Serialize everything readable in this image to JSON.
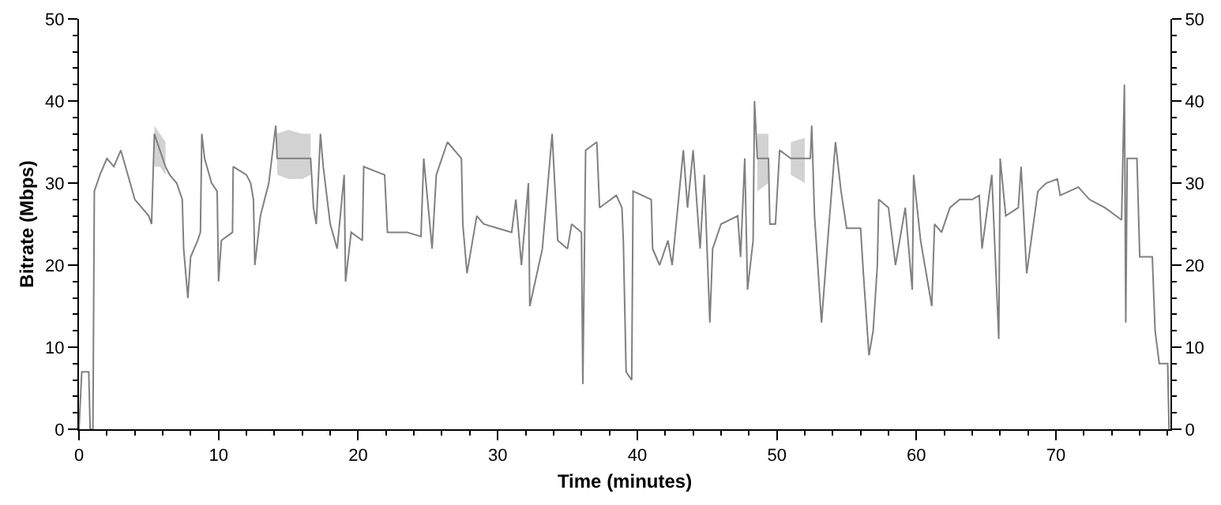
{
  "chart_data": {
    "type": "line",
    "xlabel": "Time (minutes)",
    "ylabel": "Bitrate (Mbps)",
    "xlim": [
      0,
      78.2
    ],
    "ylim": [
      0,
      50
    ],
    "y2lim": [
      0,
      50
    ],
    "xticks": [
      0,
      {
        "value": 2,
        "label": null
      },
      {
        "value": 4,
        "label": null
      },
      {
        "value": 6,
        "label": null
      },
      {
        "value": 8,
        "label": null
      },
      10,
      {
        "value": 12,
        "label": null
      },
      {
        "value": 14,
        "label": null
      },
      {
        "value": 16,
        "label": null
      },
      {
        "value": 18,
        "label": null
      },
      20,
      {
        "value": 22,
        "label": null
      },
      {
        "value": 24,
        "label": null
      },
      {
        "value": 26,
        "label": null
      },
      {
        "value": 28,
        "label": null
      },
      30,
      {
        "value": 32,
        "label": null
      },
      {
        "value": 34,
        "label": null
      },
      {
        "value": 36,
        "label": null
      },
      {
        "value": 38,
        "label": null
      },
      40,
      {
        "value": 42,
        "label": null
      },
      {
        "value": 44,
        "label": null
      },
      {
        "value": 46,
        "label": null
      },
      {
        "value": 48,
        "label": null
      },
      50,
      {
        "value": 52,
        "label": null
      },
      {
        "value": 54,
        "label": null
      },
      {
        "value": 56,
        "label": null
      },
      {
        "value": 58,
        "label": null
      },
      60,
      {
        "value": 62,
        "label": null
      },
      {
        "value": 64,
        "label": null
      },
      {
        "value": 66,
        "label": null
      },
      {
        "value": 68,
        "label": null
      },
      70,
      {
        "value": 72,
        "label": null
      },
      {
        "value": 74,
        "label": null
      },
      {
        "value": 76,
        "label": null
      },
      {
        "value": 78,
        "label": null
      }
    ],
    "yticks": [
      0,
      {
        "value": 2,
        "label": null
      },
      {
        "value": 4,
        "label": null
      },
      {
        "value": 6,
        "label": null
      },
      {
        "value": 8,
        "label": null
      },
      10,
      {
        "value": 12,
        "label": null
      },
      {
        "value": 14,
        "label": null
      },
      {
        "value": 16,
        "label": null
      },
      {
        "value": 18,
        "label": null
      },
      20,
      {
        "value": 22,
        "label": null
      },
      {
        "value": 24,
        "label": null
      },
      {
        "value": 26,
        "label": null
      },
      {
        "value": 28,
        "label": null
      },
      30,
      {
        "value": 32,
        "label": null
      },
      {
        "value": 34,
        "label": null
      },
      {
        "value": 36,
        "label": null
      },
      {
        "value": 38,
        "label": null
      },
      40,
      {
        "value": 42,
        "label": null
      },
      {
        "value": 44,
        "label": null
      },
      {
        "value": 46,
        "label": null
      },
      {
        "value": 48,
        "label": null
      },
      50
    ],
    "y2ticks": [
      0,
      {
        "value": 2,
        "label": null
      },
      {
        "value": 4,
        "label": null
      },
      {
        "value": 6,
        "label": null
      },
      {
        "value": 8,
        "label": null
      },
      10,
      {
        "value": 12,
        "label": null
      },
      {
        "value": 14,
        "label": null
      },
      {
        "value": 16,
        "label": null
      },
      {
        "value": 18,
        "label": null
      },
      20,
      {
        "value": 22,
        "label": null
      },
      {
        "value": 24,
        "label": null
      },
      {
        "value": 26,
        "label": null
      },
      {
        "value": 28,
        "label": null
      },
      30,
      {
        "value": 32,
        "label": null
      },
      {
        "value": 34,
        "label": null
      },
      {
        "value": 36,
        "label": null
      },
      {
        "value": 38,
        "label": null
      },
      40,
      {
        "value": 42,
        "label": null
      },
      {
        "value": 44,
        "label": null
      },
      {
        "value": 46,
        "label": null
      },
      {
        "value": 48,
        "label": null
      },
      50
    ],
    "marker": "none",
    "line_style": "solid",
    "series": [
      {
        "color": "#808080",
        "x": [
          0,
          0.2,
          0.7,
          0.8,
          1.0,
          1.1,
          1.5,
          2.0,
          2.5,
          3.0,
          3.5,
          4.0,
          4.5,
          5.0,
          5.2,
          5.4,
          5.8,
          6.2,
          6.5,
          7.0,
          7.4,
          7.5,
          7.8,
          8.0,
          8.5,
          8.7,
          8.8,
          9.0,
          9.5,
          9.9,
          10.0,
          10.2,
          11.0,
          11.05,
          12.0,
          12.3,
          12.5,
          12.6,
          13.0,
          13.6,
          14.1,
          14.2,
          15.0,
          16.0,
          16.6,
          16.8,
          17.0,
          17.3,
          17.5,
          18.0,
          18.5,
          19.0,
          19.1,
          19.5,
          20.3,
          20.4,
          21.9,
          22.1,
          23.5,
          24.5,
          24.7,
          25.3,
          25.6,
          26.4,
          27.4,
          27.5,
          27.8,
          28.5,
          29.0,
          30.0,
          31.0,
          31.3,
          31.7,
          32.2,
          32.3,
          33.2,
          33.9,
          34.3,
          35.0,
          35.3,
          36.0,
          36.1,
          36.3,
          37.1,
          37.3,
          38.5,
          38.9,
          39.0,
          39.2,
          39.6,
          39.7,
          41.0,
          41.1,
          41.6,
          42.2,
          42.5,
          43.3,
          43.6,
          44.0,
          44.5,
          44.8,
          45.2,
          45.4,
          46.0,
          47.2,
          47.4,
          47.7,
          47.9,
          48.3,
          48.4,
          48.6,
          49.4,
          49.5,
          49.9,
          50.2,
          51.0,
          52.0,
          52.4,
          52.5,
          52.7,
          53.2,
          53.6,
          54.2,
          54.6,
          55.0,
          56.0,
          56.2,
          56.6,
          56.9,
          57.2,
          57.3,
          58.0,
          58.5,
          59.2,
          59.7,
          59.8,
          60.3,
          61.1,
          61.3,
          61.8,
          62.4,
          63.1,
          64.0,
          64.5,
          64.7,
          65.4,
          65.9,
          66.0,
          66.4,
          67.3,
          67.5,
          67.9,
          68.7,
          69.3,
          70.1,
          70.3,
          71.6,
          72.4,
          73.5,
          74.7,
          74.9,
          75.0,
          75.1,
          75.8,
          76.0,
          76.9,
          77.1,
          77.4,
          78.0,
          78.1
        ],
        "values": [
          0,
          7,
          7,
          0,
          0,
          29,
          31,
          33,
          32,
          34,
          31,
          28,
          27,
          26,
          25,
          36,
          34,
          32,
          31,
          30,
          28,
          22,
          16,
          21,
          23,
          24,
          36,
          33,
          30,
          29,
          18,
          23,
          24,
          32,
          31,
          30,
          28,
          20,
          26,
          30,
          37,
          33,
          33,
          33,
          33,
          27,
          25,
          36,
          32,
          25,
          22,
          31,
          18,
          24,
          23,
          32,
          31,
          24,
          24,
          23.5,
          33,
          22,
          31,
          35,
          33,
          25,
          19,
          26,
          25,
          24.5,
          24,
          28,
          20,
          30,
          15,
          22,
          36,
          23,
          22,
          25,
          24,
          5.5,
          34,
          35,
          27,
          28.5,
          27,
          23,
          7,
          6,
          29,
          28,
          22,
          20,
          23,
          20,
          34,
          27,
          34,
          22,
          31,
          13,
          22,
          25,
          26,
          21,
          33,
          17,
          23,
          40,
          33,
          33,
          25,
          25,
          34,
          33,
          33,
          33,
          37,
          26,
          13,
          22,
          35,
          29,
          24.5,
          24.5,
          19,
          9,
          12,
          20,
          28,
          27,
          20,
          27,
          17,
          31,
          23,
          15,
          25,
          24,
          27,
          28,
          28,
          28.5,
          22,
          31,
          11,
          33,
          26,
          27,
          32,
          19,
          29,
          30,
          30.5,
          28.5,
          29.5,
          28,
          27,
          25.5,
          42,
          13,
          33,
          33,
          21,
          21,
          12,
          8,
          8,
          0
        ],
        "lower": [
          null,
          null,
          null,
          null,
          null,
          null,
          null,
          null,
          null,
          null,
          null,
          null,
          null,
          null,
          null,
          32,
          32,
          31,
          null,
          null,
          null,
          null,
          null,
          null,
          null,
          null,
          null,
          null,
          null,
          null,
          null,
          null,
          null,
          null,
          null,
          null,
          null,
          null,
          null,
          null,
          null,
          31,
          30.5,
          30.5,
          31,
          null,
          null,
          null,
          null,
          null,
          null,
          null,
          null,
          null,
          null,
          null,
          null,
          null,
          null,
          null,
          null,
          null,
          null,
          null,
          null,
          null,
          null,
          null,
          null,
          null,
          null,
          null,
          null,
          null,
          null,
          null,
          null,
          null,
          null,
          null,
          null,
          null,
          null,
          null,
          null,
          null,
          null,
          null,
          null,
          null,
          null,
          null,
          null,
          null,
          null,
          null,
          null,
          null,
          null,
          null,
          null,
          null,
          null,
          null,
          null,
          null,
          null,
          null,
          null,
          null,
          29,
          30,
          null,
          null,
          null,
          31,
          30,
          null,
          null,
          null,
          null,
          null,
          null,
          null,
          null,
          null,
          null,
          null,
          null,
          null,
          null,
          null,
          null,
          null,
          null,
          null,
          null,
          null,
          null,
          null,
          null,
          null,
          null,
          null,
          null,
          null,
          null,
          null,
          null,
          null,
          null,
          null,
          null,
          null,
          null,
          null,
          null,
          null,
          null,
          null,
          null,
          null,
          null,
          null,
          null,
          null,
          null,
          null,
          null,
          null
        ],
        "upper": [
          null,
          null,
          null,
          null,
          null,
          null,
          null,
          null,
          null,
          null,
          null,
          null,
          null,
          null,
          null,
          37,
          36,
          35,
          null,
          null,
          null,
          null,
          null,
          null,
          null,
          null,
          null,
          null,
          null,
          null,
          null,
          null,
          null,
          null,
          null,
          null,
          null,
          null,
          null,
          null,
          null,
          36,
          36.5,
          36,
          36,
          null,
          null,
          null,
          null,
          null,
          null,
          null,
          null,
          null,
          null,
          null,
          null,
          null,
          null,
          null,
          null,
          null,
          null,
          null,
          null,
          null,
          null,
          null,
          null,
          null,
          null,
          null,
          null,
          null,
          null,
          null,
          null,
          null,
          null,
          null,
          null,
          null,
          null,
          null,
          null,
          null,
          null,
          null,
          null,
          null,
          null,
          null,
          null,
          null,
          null,
          null,
          null,
          null,
          null,
          null,
          null,
          null,
          null,
          null,
          null,
          null,
          null,
          null,
          null,
          null,
          36,
          36,
          null,
          null,
          null,
          35,
          35.5,
          null,
          null,
          null,
          null,
          null,
          null,
          null,
          null,
          null,
          null,
          null,
          null,
          null,
          null,
          null,
          null,
          null,
          null,
          null,
          null,
          null,
          null,
          null,
          null,
          null,
          null,
          null,
          null,
          null,
          null,
          null,
          null,
          null,
          null,
          null,
          null,
          null,
          null,
          null,
          null,
          null,
          null,
          null,
          null,
          null,
          null,
          null,
          null,
          null,
          null,
          null,
          null,
          null
        ]
      }
    ]
  }
}
